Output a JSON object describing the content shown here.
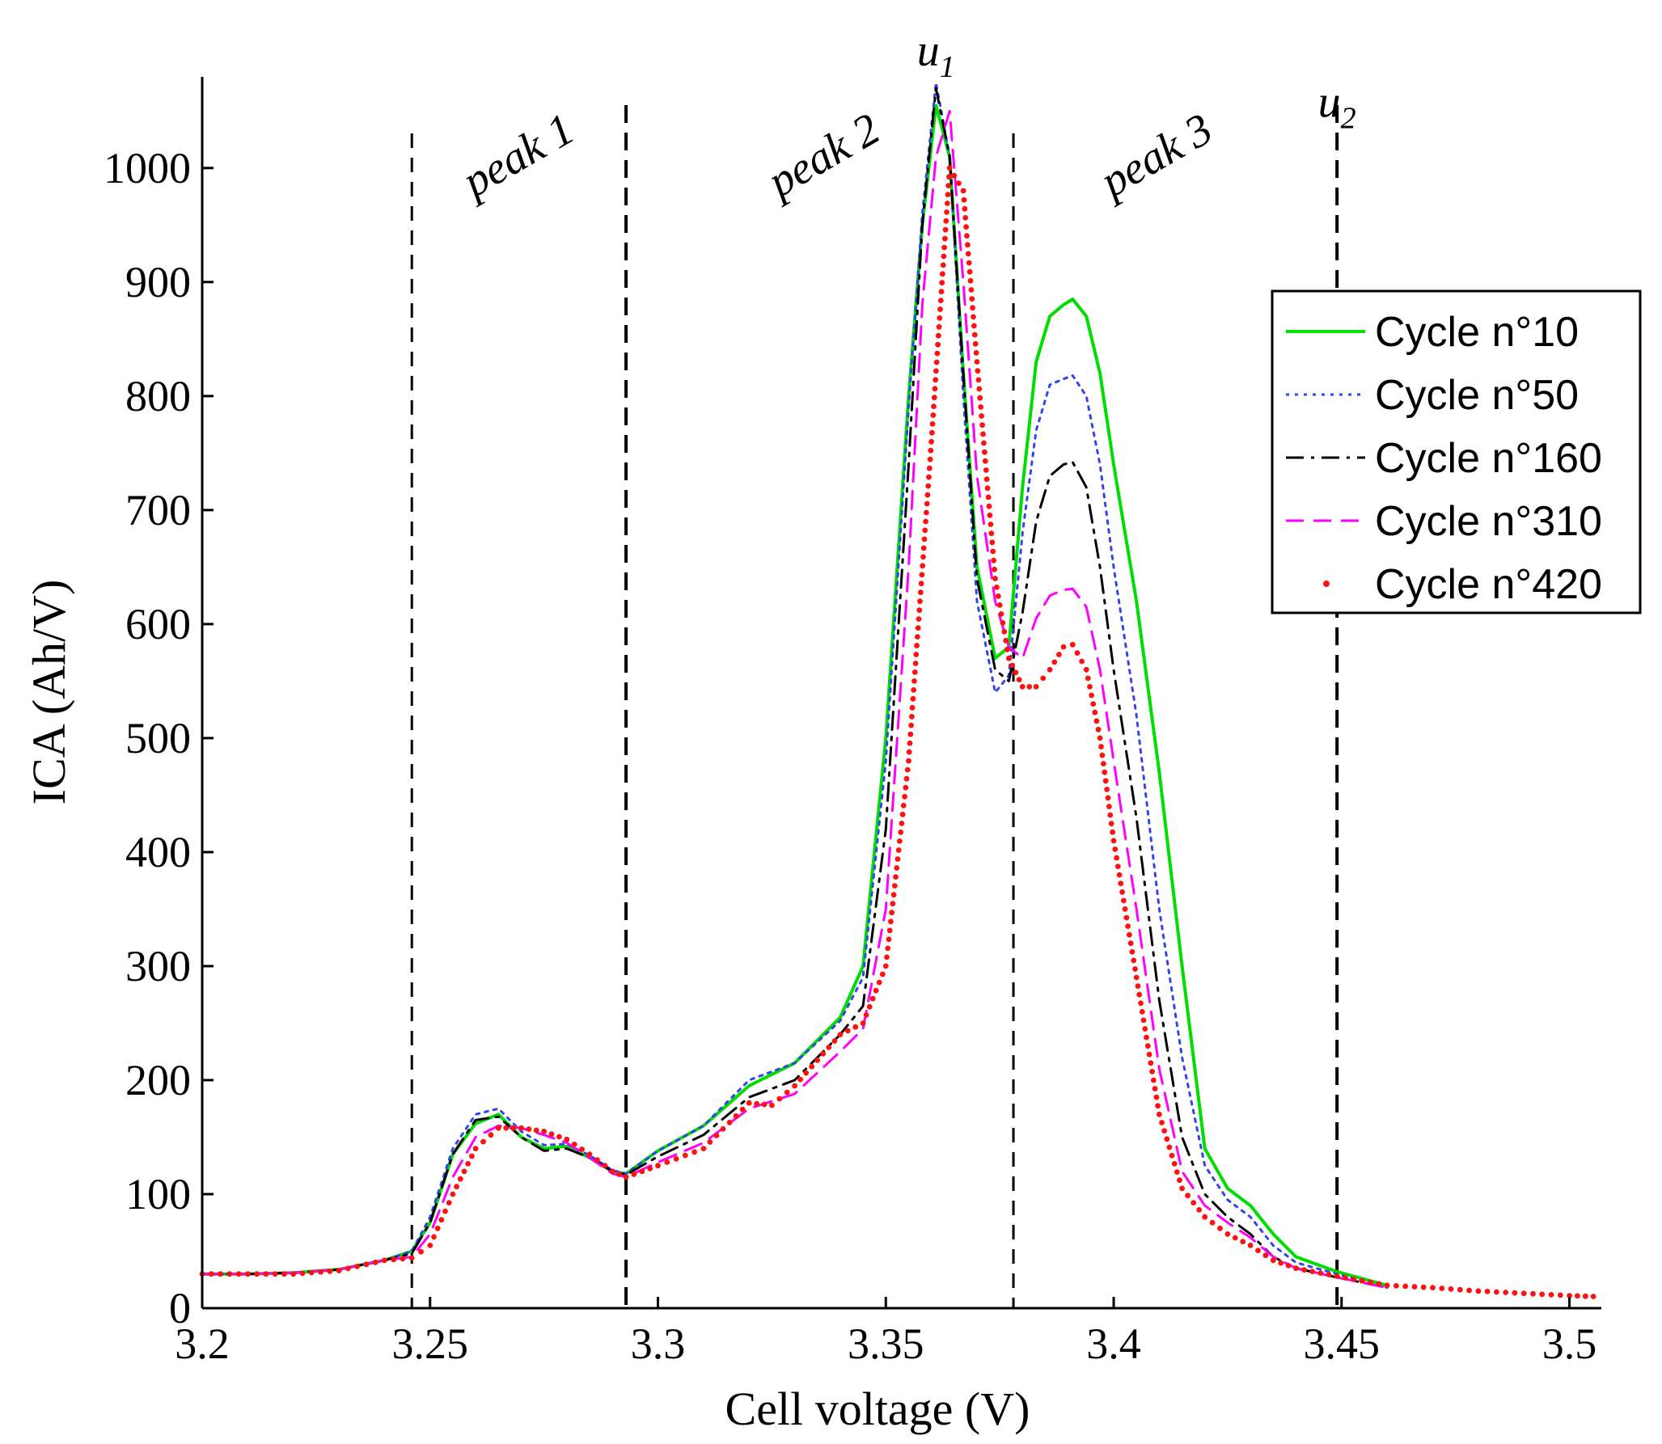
{
  "chart_data": {
    "type": "line",
    "xlabel": "Cell voltage (V)",
    "ylabel": "ICA (Ah/V)",
    "xlim": [
      3.2,
      3.507
    ],
    "ylim": [
      0,
      1080
    ],
    "x_ticks": [
      3.2,
      3.25,
      3.3,
      3.35,
      3.4,
      3.45,
      3.5
    ],
    "x_tick_labels": [
      "3.2",
      "3.25",
      "3.3",
      "3.35",
      "3.4",
      "3.45",
      "3.5"
    ],
    "y_ticks": [
      0,
      100,
      200,
      300,
      400,
      500,
      600,
      700,
      800,
      900,
      1000
    ],
    "y_tick_labels": [
      "0",
      "100",
      "200",
      "300",
      "400",
      "500",
      "600",
      "700",
      "800",
      "900",
      "1000"
    ],
    "vlines": [
      {
        "x": 3.246,
        "thick": false
      },
      {
        "x": 3.293,
        "thick": true
      },
      {
        "x": 3.378,
        "thick": false
      },
      {
        "x": 3.449,
        "thick": true
      }
    ],
    "annotations": [
      {
        "text": "peak 1",
        "x": 3.271,
        "y": 1000,
        "rotate": -30
      },
      {
        "text": "peak 2",
        "x": 3.338,
        "y": 1000,
        "rotate": -30
      },
      {
        "text": "peak 3",
        "x": 3.411,
        "y": 1000,
        "rotate": -30
      },
      {
        "text": "u",
        "sub": "1",
        "x": 3.361,
        "y": 1090,
        "rotate": 0
      },
      {
        "text": "u",
        "sub": "2",
        "x": 3.449,
        "y": 1045,
        "rotate": 0
      }
    ],
    "legend_position": "right",
    "series": [
      {
        "name": "Cycle n°10",
        "color": "#00dd00",
        "style": "solid",
        "x": [
          3.2,
          3.21,
          3.22,
          3.23,
          3.24,
          3.246,
          3.25,
          3.255,
          3.26,
          3.265,
          3.27,
          3.275,
          3.28,
          3.285,
          3.29,
          3.293,
          3.3,
          3.31,
          3.32,
          3.33,
          3.34,
          3.345,
          3.35,
          3.355,
          3.358,
          3.361,
          3.364,
          3.367,
          3.37,
          3.374,
          3.377,
          3.38,
          3.383,
          3.386,
          3.389,
          3.391,
          3.394,
          3.397,
          3.4,
          3.405,
          3.41,
          3.415,
          3.42,
          3.425,
          3.43,
          3.435,
          3.44,
          3.449,
          3.46
        ],
        "y": [
          30,
          30,
          31,
          34,
          42,
          50,
          75,
          135,
          162,
          170,
          150,
          140,
          142,
          132,
          120,
          118,
          138,
          160,
          195,
          215,
          255,
          300,
          500,
          800,
          950,
          1055,
          1010,
          820,
          650,
          570,
          580,
          720,
          830,
          870,
          880,
          885,
          870,
          820,
          740,
          620,
          470,
          300,
          140,
          105,
          90,
          65,
          45,
          32,
          20
        ]
      },
      {
        "name": "Cycle n°50",
        "color": "#3344ee",
        "style": "dotted",
        "x": [
          3.2,
          3.21,
          3.22,
          3.23,
          3.24,
          3.246,
          3.25,
          3.255,
          3.26,
          3.265,
          3.27,
          3.275,
          3.28,
          3.285,
          3.29,
          3.293,
          3.3,
          3.31,
          3.32,
          3.33,
          3.34,
          3.345,
          3.35,
          3.355,
          3.358,
          3.361,
          3.364,
          3.367,
          3.37,
          3.374,
          3.377,
          3.38,
          3.383,
          3.386,
          3.389,
          3.391,
          3.394,
          3.397,
          3.4,
          3.405,
          3.41,
          3.415,
          3.42,
          3.425,
          3.43,
          3.435,
          3.44,
          3.449,
          3.46
        ],
        "y": [
          30,
          30,
          31,
          34,
          42,
          50,
          80,
          140,
          170,
          175,
          155,
          143,
          144,
          134,
          121,
          118,
          138,
          160,
          200,
          215,
          252,
          290,
          480,
          790,
          960,
          1075,
          1010,
          800,
          620,
          540,
          555,
          680,
          770,
          810,
          815,
          818,
          800,
          740,
          650,
          520,
          350,
          220,
          125,
          95,
          80,
          55,
          40,
          30,
          18
        ]
      },
      {
        "name": "Cycle n°160",
        "color": "#000000",
        "style": "dashdot",
        "x": [
          3.2,
          3.21,
          3.22,
          3.23,
          3.24,
          3.246,
          3.25,
          3.255,
          3.26,
          3.265,
          3.27,
          3.275,
          3.28,
          3.285,
          3.29,
          3.293,
          3.3,
          3.31,
          3.32,
          3.33,
          3.34,
          3.345,
          3.35,
          3.355,
          3.358,
          3.361,
          3.364,
          3.367,
          3.37,
          3.374,
          3.377,
          3.38,
          3.383,
          3.386,
          3.389,
          3.391,
          3.394,
          3.397,
          3.4,
          3.405,
          3.41,
          3.415,
          3.42,
          3.425,
          3.43,
          3.435,
          3.44,
          3.449,
          3.46
        ],
        "y": [
          30,
          30,
          31,
          34,
          42,
          48,
          75,
          135,
          165,
          168,
          150,
          138,
          140,
          132,
          120,
          117,
          133,
          152,
          185,
          200,
          240,
          265,
          420,
          740,
          950,
          1070,
          1010,
          820,
          640,
          560,
          550,
          610,
          690,
          730,
          740,
          742,
          720,
          650,
          560,
          430,
          270,
          150,
          100,
          80,
          65,
          45,
          35,
          27,
          18
        ]
      },
      {
        "name": "Cycle n°310",
        "color": "#ff00ff",
        "style": "dashed",
        "x": [
          3.2,
          3.21,
          3.22,
          3.23,
          3.24,
          3.246,
          3.25,
          3.255,
          3.26,
          3.265,
          3.27,
          3.275,
          3.28,
          3.285,
          3.29,
          3.293,
          3.3,
          3.31,
          3.32,
          3.33,
          3.34,
          3.345,
          3.35,
          3.355,
          3.358,
          3.361,
          3.364,
          3.367,
          3.37,
          3.374,
          3.377,
          3.38,
          3.383,
          3.386,
          3.389,
          3.391,
          3.394,
          3.397,
          3.4,
          3.405,
          3.41,
          3.415,
          3.42,
          3.425,
          3.43,
          3.435,
          3.44,
          3.449,
          3.46
        ],
        "y": [
          30,
          30,
          31,
          34,
          42,
          45,
          65,
          115,
          150,
          160,
          158,
          152,
          145,
          132,
          118,
          115,
          128,
          145,
          175,
          188,
          225,
          245,
          350,
          650,
          880,
          1010,
          1050,
          900,
          730,
          620,
          580,
          570,
          605,
          625,
          630,
          631,
          615,
          560,
          480,
          350,
          210,
          120,
          90,
          75,
          62,
          45,
          35,
          27,
          18
        ]
      },
      {
        "name": "Cycle n°420",
        "color": "#ff1111",
        "style": "dots",
        "x": [
          3.2,
          3.21,
          3.22,
          3.23,
          3.24,
          3.246,
          3.25,
          3.255,
          3.26,
          3.265,
          3.27,
          3.275,
          3.28,
          3.285,
          3.29,
          3.293,
          3.3,
          3.31,
          3.32,
          3.325,
          3.33,
          3.34,
          3.345,
          3.35,
          3.355,
          3.36,
          3.364,
          3.367,
          3.37,
          3.374,
          3.377,
          3.38,
          3.383,
          3.386,
          3.389,
          3.391,
          3.394,
          3.397,
          3.4,
          3.405,
          3.41,
          3.415,
          3.42,
          3.425,
          3.43,
          3.435,
          3.44,
          3.449,
          3.46,
          3.47,
          3.48,
          3.49,
          3.5,
          3.507
        ],
        "y": [
          30,
          30,
          30,
          33,
          42,
          44,
          55,
          100,
          140,
          158,
          158,
          155,
          148,
          135,
          120,
          115,
          125,
          140,
          180,
          178,
          195,
          240,
          250,
          300,
          480,
          760,
          1000,
          980,
          830,
          640,
          570,
          545,
          545,
          560,
          580,
          582,
          560,
          500,
          410,
          290,
          170,
          105,
          80,
          65,
          55,
          42,
          35,
          28,
          20,
          18,
          15,
          13,
          11,
          10
        ]
      }
    ]
  }
}
